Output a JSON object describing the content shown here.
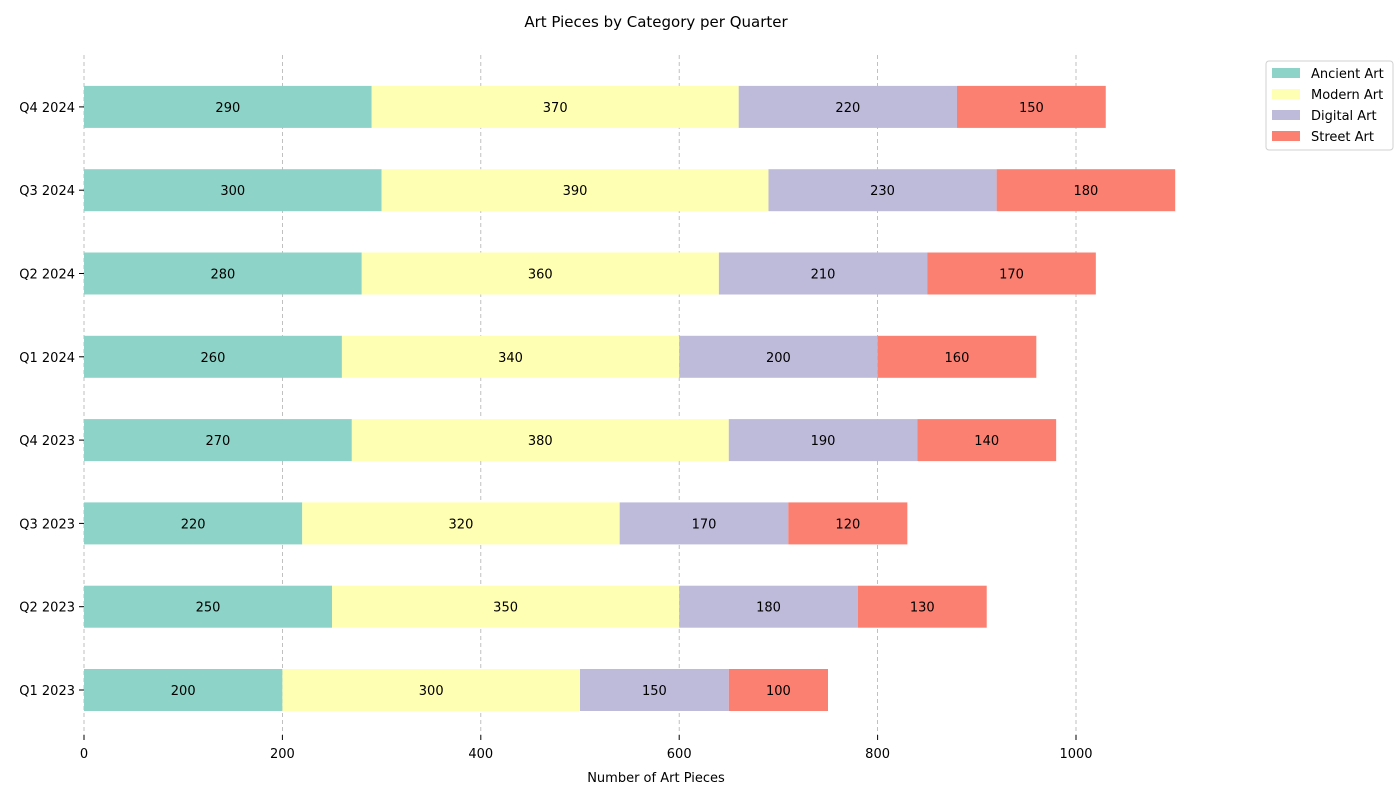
{
  "chart_data": {
    "type": "bar",
    "orientation": "horizontal",
    "stacked": true,
    "title": "Art Pieces by Category per Quarter",
    "xlabel": "Number of Art Pieces",
    "ylabel": "",
    "xlim": [
      0,
      1150
    ],
    "x_ticks": [
      0,
      200,
      400,
      600,
      800,
      1000
    ],
    "grid": "x, dashed",
    "legend_position": "top-right, outside",
    "categories": [
      "Q1 2023",
      "Q2 2023",
      "Q3 2023",
      "Q4 2023",
      "Q1 2024",
      "Q2 2024",
      "Q3 2024",
      "Q4 2024"
    ],
    "series": [
      {
        "name": "Ancient Art",
        "color": "#8dd3c7",
        "values": [
          200,
          250,
          220,
          270,
          260,
          280,
          300,
          290
        ]
      },
      {
        "name": "Modern Art",
        "color": "#ffffb3",
        "values": [
          300,
          350,
          320,
          380,
          340,
          360,
          390,
          370
        ]
      },
      {
        "name": "Digital Art",
        "color": "#bebada",
        "values": [
          150,
          180,
          170,
          190,
          200,
          210,
          230,
          220
        ]
      },
      {
        "name": "Street Art",
        "color": "#fb8072",
        "values": [
          100,
          130,
          120,
          140,
          160,
          170,
          180,
          150
        ]
      }
    ]
  }
}
